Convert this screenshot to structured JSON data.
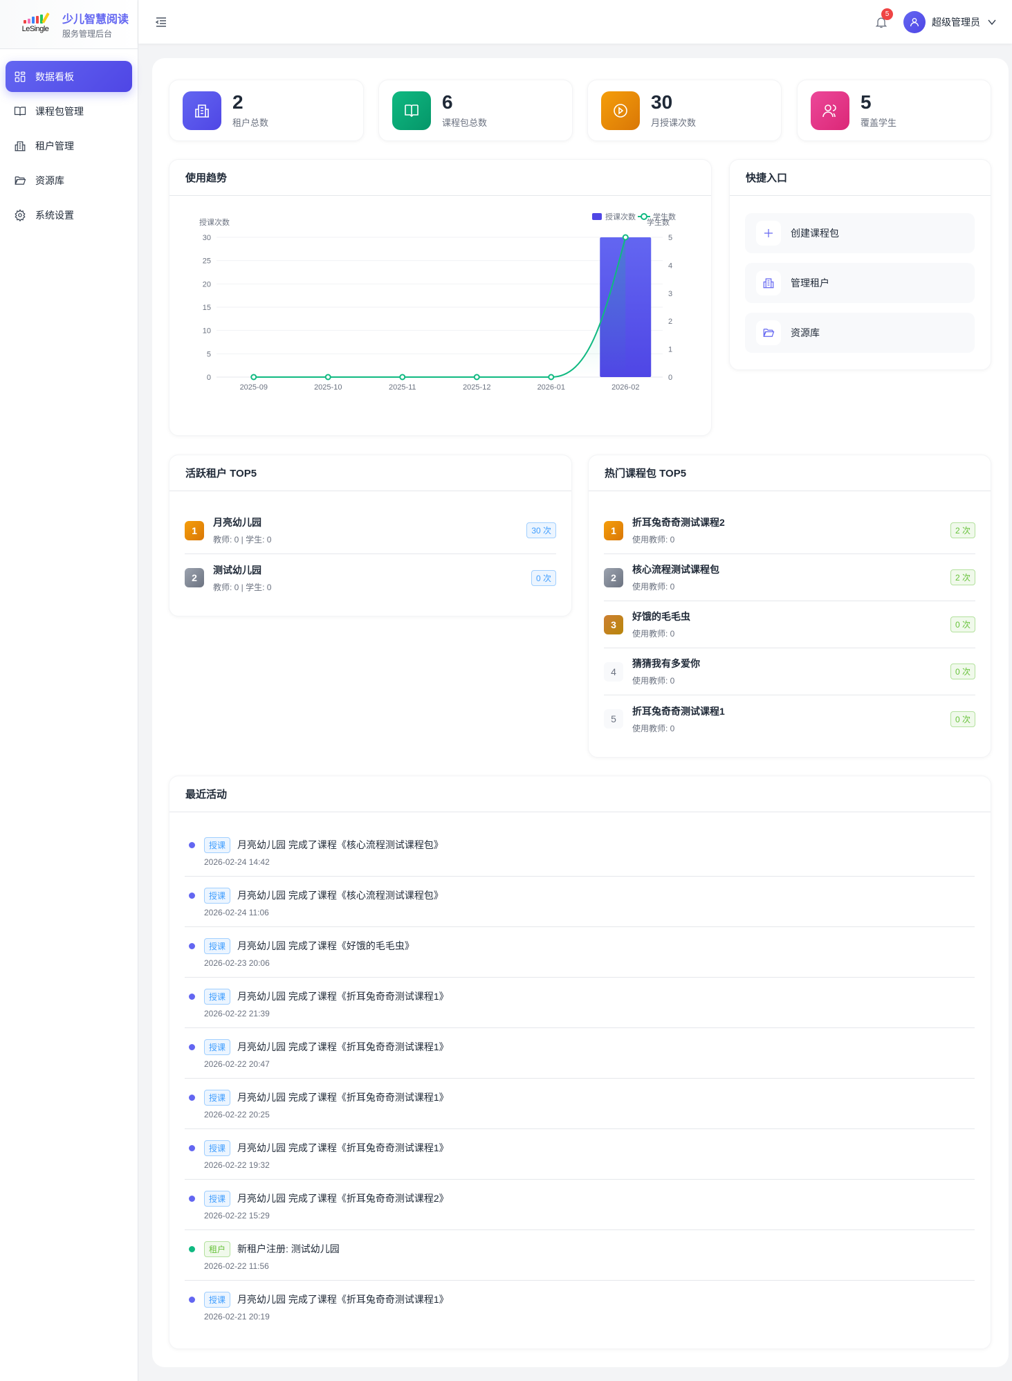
{
  "brand": {
    "logo_text": "LeSingle",
    "title": "少儿智慧阅读",
    "subtitle": "服务管理后台"
  },
  "sidebar": {
    "items": [
      {
        "label": "数据看板",
        "icon": "dashboard-icon",
        "active": true
      },
      {
        "label": "课程包管理",
        "icon": "book-icon"
      },
      {
        "label": "租户管理",
        "icon": "building-icon"
      },
      {
        "label": "资源库",
        "icon": "folder-icon"
      },
      {
        "label": "系统设置",
        "icon": "gear-icon"
      }
    ]
  },
  "header": {
    "notifications": "5",
    "user": "超级管理员"
  },
  "stats": [
    {
      "value": "2",
      "label": "租户总数",
      "icon": "building-icon",
      "color": "#6366f1"
    },
    {
      "value": "6",
      "label": "课程包总数",
      "icon": "book-icon",
      "color": "#10b981"
    },
    {
      "value": "30",
      "label": "月授课次数",
      "icon": "play-circle-icon",
      "color": "#f59e0b"
    },
    {
      "value": "5",
      "label": "覆盖学生",
      "icon": "users-icon",
      "color": "#ec4899"
    }
  ],
  "trend": {
    "title": "使用趋势"
  },
  "chart_data": {
    "type": "bar+line",
    "categories": [
      "2025-09",
      "2025-10",
      "2025-11",
      "2025-12",
      "2026-01",
      "2026-02"
    ],
    "series": [
      {
        "name": "授课次数",
        "type": "bar",
        "axis": "left",
        "color": "#4f46e5",
        "values": [
          0,
          0,
          0,
          0,
          0,
          30
        ]
      },
      {
        "name": "学生数",
        "type": "line",
        "axis": "right",
        "color": "#10b981",
        "smooth": true,
        "values": [
          0,
          0,
          0,
          0,
          0,
          5
        ]
      }
    ],
    "ylabel_left": "授课次数",
    "ylabel_right": "学生数",
    "ylim_left": [
      0,
      30
    ],
    "yticks_left": [
      "0",
      "5",
      "10",
      "15",
      "20",
      "25",
      "30"
    ],
    "ylim_right": [
      0,
      5
    ],
    "yticks_right": [
      "0",
      "1",
      "2",
      "3",
      "4",
      "5"
    ],
    "grid": true,
    "legend": "top-right"
  },
  "quick": {
    "title": "快捷入口",
    "items": [
      {
        "label": "创建课程包",
        "icon": "plus-icon"
      },
      {
        "label": "管理租户",
        "icon": "building-icon"
      },
      {
        "label": "资源库",
        "icon": "folder-icon"
      }
    ]
  },
  "tenants": {
    "title": "活跃租户 TOP5",
    "items": [
      {
        "rank": "1",
        "name": "月亮幼儿园",
        "sub": "教师: 0 | 学生: 0",
        "count": "30 次"
      },
      {
        "rank": "2",
        "name": "测试幼儿园",
        "sub": "教师: 0 | 学生: 0",
        "count": "0 次"
      }
    ]
  },
  "courses": {
    "title": "热门课程包 TOP5",
    "items": [
      {
        "rank": "1",
        "name": "折耳兔奇奇测试课程2",
        "sub": "使用教师: 0",
        "count": "2 次"
      },
      {
        "rank": "2",
        "name": "核心流程测试课程包",
        "sub": "使用教师: 0",
        "count": "2 次"
      },
      {
        "rank": "3",
        "name": "好饿的毛毛虫",
        "sub": "使用教师: 0",
        "count": "0 次"
      },
      {
        "rank": "4",
        "name": "猜猜我有多爱你",
        "sub": "使用教师: 0",
        "count": "0 次"
      },
      {
        "rank": "5",
        "name": "折耳兔奇奇测试课程1",
        "sub": "使用教师: 0",
        "count": "0 次"
      }
    ]
  },
  "activity": {
    "title": "最近活动",
    "items": [
      {
        "tag": "授课",
        "type": "lesson",
        "text": "月亮幼儿园 完成了课程《核心流程测试课程包》",
        "time": "2026-02-24 14:42"
      },
      {
        "tag": "授课",
        "type": "lesson",
        "text": "月亮幼儿园 完成了课程《核心流程测试课程包》",
        "time": "2026-02-24 11:06"
      },
      {
        "tag": "授课",
        "type": "lesson",
        "text": "月亮幼儿园 完成了课程《好饿的毛毛虫》",
        "time": "2026-02-23 20:06"
      },
      {
        "tag": "授课",
        "type": "lesson",
        "text": "月亮幼儿园 完成了课程《折耳兔奇奇测试课程1》",
        "time": "2026-02-22 21:39"
      },
      {
        "tag": "授课",
        "type": "lesson",
        "text": "月亮幼儿园 完成了课程《折耳兔奇奇测试课程1》",
        "time": "2026-02-22 20:47"
      },
      {
        "tag": "授课",
        "type": "lesson",
        "text": "月亮幼儿园 完成了课程《折耳兔奇奇测试课程1》",
        "time": "2026-02-22 20:25"
      },
      {
        "tag": "授课",
        "type": "lesson",
        "text": "月亮幼儿园 完成了课程《折耳兔奇奇测试课程1》",
        "time": "2026-02-22 19:32"
      },
      {
        "tag": "授课",
        "type": "lesson",
        "text": "月亮幼儿园 完成了课程《折耳兔奇奇测试课程2》",
        "time": "2026-02-22 15:29"
      },
      {
        "tag": "租户",
        "type": "tenant",
        "text": "新租户注册: 测试幼儿园",
        "time": "2026-02-22 11:56"
      },
      {
        "tag": "授课",
        "type": "lesson",
        "text": "月亮幼儿园 完成了课程《折耳兔奇奇测试课程1》",
        "time": "2026-02-21 20:19"
      }
    ]
  },
  "colors": {
    "primary": "#6366f1",
    "lesson_dot": "#6366f1",
    "tenant_dot": "#10b981"
  }
}
